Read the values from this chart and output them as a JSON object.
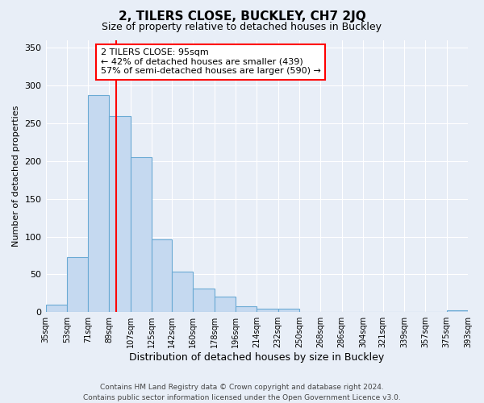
{
  "title": "2, TILERS CLOSE, BUCKLEY, CH7 2JQ",
  "subtitle": "Size of property relative to detached houses in Buckley",
  "xlabel": "Distribution of detached houses by size in Buckley",
  "ylabel": "Number of detached properties",
  "bin_edges": [
    35,
    53,
    71,
    89,
    107,
    125,
    142,
    160,
    178,
    196,
    214,
    232,
    250,
    268,
    286,
    304,
    321,
    339,
    357,
    375,
    393
  ],
  "bar_values": [
    10,
    73,
    287,
    260,
    205,
    96,
    54,
    31,
    21,
    8,
    5,
    5,
    0,
    0,
    0,
    0,
    0,
    0,
    0,
    2
  ],
  "bar_color": "#c5d9f0",
  "bar_edge_color": "#6aaad4",
  "vline_x": 95,
  "vline_color": "red",
  "ylim": [
    0,
    360
  ],
  "yticks": [
    0,
    50,
    100,
    150,
    200,
    250,
    300,
    350
  ],
  "tick_labels": [
    "35sqm",
    "53sqm",
    "71sqm",
    "89sqm",
    "107sqm",
    "125sqm",
    "142sqm",
    "160sqm",
    "178sqm",
    "196sqm",
    "214sqm",
    "232sqm",
    "250sqm",
    "268sqm",
    "286sqm",
    "304sqm",
    "321sqm",
    "339sqm",
    "357sqm",
    "375sqm",
    "393sqm"
  ],
  "annotation_text": "2 TILERS CLOSE: 95sqm\n← 42% of detached houses are smaller (439)\n57% of semi-detached houses are larger (590) →",
  "annotation_box_color": "white",
  "annotation_box_edge_color": "red",
  "footer_line1": "Contains HM Land Registry data © Crown copyright and database right 2024.",
  "footer_line2": "Contains public sector information licensed under the Open Government Licence v3.0.",
  "bg_color": "#e8eef7",
  "plot_bg_color": "#e8eef7",
  "grid_color": "white",
  "title_fontsize": 11,
  "subtitle_fontsize": 9,
  "xlabel_fontsize": 9,
  "ylabel_fontsize": 8,
  "tick_fontsize": 7,
  "footer_fontsize": 6.5
}
